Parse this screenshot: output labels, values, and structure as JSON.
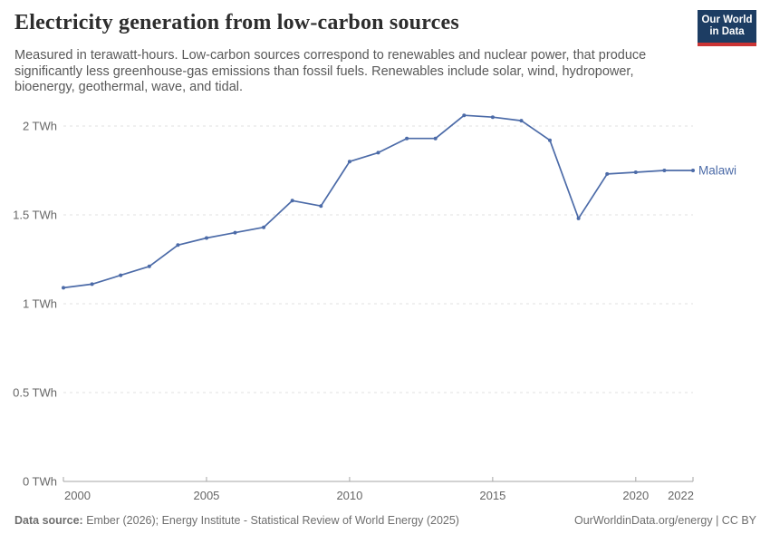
{
  "header": {
    "title": "Electricity generation from low-carbon sources",
    "subtitle_lines": [
      "Measured in terawatt-hours. Low-carbon sources correspond to renewables and nuclear power, that produce",
      "significantly less greenhouse-gas emissions than fossil fuels. Renewables include solar, wind, hydropower,",
      "bioenergy, geothermal, wave, and tidal."
    ],
    "logo": {
      "line1": "Our World",
      "line2": "in Data",
      "bg_color": "#1d3d63",
      "bar_color": "#cb3434"
    }
  },
  "chart_data": {
    "type": "line",
    "title": "Electricity generation from low-carbon sources",
    "unit": "TWh",
    "x": [
      2000,
      2001,
      2002,
      2003,
      2004,
      2005,
      2006,
      2007,
      2008,
      2009,
      2010,
      2011,
      2012,
      2013,
      2014,
      2015,
      2016,
      2017,
      2018,
      2019,
      2020,
      2021,
      2022
    ],
    "series": [
      {
        "name": "Malawi",
        "color": "#4c6ba8",
        "values": [
          1.09,
          1.11,
          1.16,
          1.21,
          1.33,
          1.37,
          1.4,
          1.43,
          1.58,
          1.55,
          1.8,
          1.85,
          1.93,
          1.93,
          2.06,
          2.05,
          2.03,
          1.92,
          1.48,
          1.73,
          1.74,
          1.75,
          1.75
        ]
      }
    ],
    "x_ticks": [
      2000,
      2005,
      2010,
      2015,
      2020,
      2022
    ],
    "y_ticks": [
      {
        "value": 0,
        "label": "0 TWh"
      },
      {
        "value": 0.5,
        "label": "0.5 TWh"
      },
      {
        "value": 1,
        "label": "1 TWh"
      },
      {
        "value": 1.5,
        "label": "1.5 TWh"
      },
      {
        "value": 2,
        "label": "2 TWh"
      }
    ],
    "xlim": [
      2000,
      2022
    ],
    "ylim": [
      0,
      2.15
    ],
    "grid": true,
    "legend_position": "end-of-line-label",
    "colors": {
      "grid": "#e2e2e2",
      "axis": "#a6a6a6",
      "axis_text": "#666666"
    }
  },
  "footer": {
    "source_label": "Data source:",
    "source_text": " Ember (2026); Energy Institute - Statistical Review of World Energy (2025)",
    "credit": "OurWorldinData.org/energy | CC BY"
  }
}
